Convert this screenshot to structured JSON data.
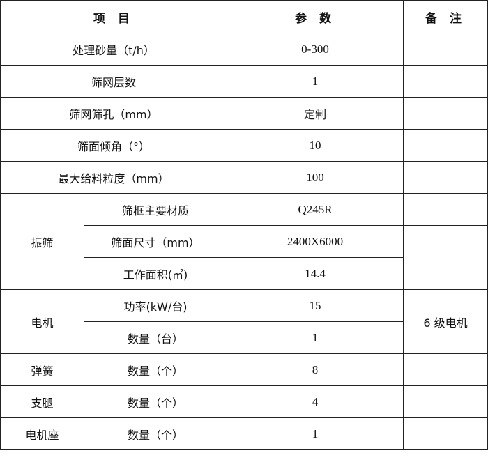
{
  "header": {
    "item": "项 目",
    "param": "参 数",
    "remark": "备 注"
  },
  "rows_simple": [
    {
      "label": "处理砂量（t/h）",
      "value": "0-300"
    },
    {
      "label": "筛网层数",
      "value": "1"
    },
    {
      "label": "筛网筛孔（mm）",
      "value": "定制"
    },
    {
      "label": "筛面倾角（°）",
      "value": "10"
    },
    {
      "label": "最大给料粒度（mm）",
      "value": "100"
    }
  ],
  "screen": {
    "group": "振筛",
    "rows": [
      {
        "label": "筛框主要材质",
        "value": "Q245R"
      },
      {
        "label": "筛面尺寸（mm）",
        "value": "2400X6000"
      },
      {
        "label": "工作面积(㎡)",
        "value": "14.4"
      }
    ]
  },
  "motor": {
    "group": "电机",
    "remark": "6 级电机",
    "rows": [
      {
        "label": "功率(kW/台)",
        "value": "15"
      },
      {
        "label": "数量（台）",
        "value": "1"
      }
    ]
  },
  "others": [
    {
      "group": "弹簧",
      "label": "数量（个）",
      "value": "8"
    },
    {
      "group": "支腿",
      "label": "数量（个）",
      "value": "4"
    },
    {
      "group": "电机座",
      "label": "数量（个）",
      "value": "1"
    }
  ]
}
